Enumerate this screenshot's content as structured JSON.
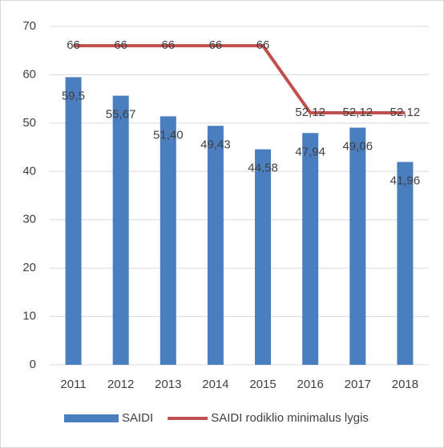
{
  "chart_data": {
    "type": "bar_line",
    "categories": [
      "2011",
      "2012",
      "2013",
      "2014",
      "2015",
      "2016",
      "2017",
      "2018"
    ],
    "series": [
      {
        "name": "SAIDI",
        "type": "bar",
        "color": "#4a7ebf",
        "values": [
          59.5,
          55.67,
          51.4,
          49.43,
          44.58,
          47.94,
          49.06,
          41.96
        ],
        "value_labels": [
          "59,5",
          "55,67",
          "51,40",
          "49,43",
          "44,58",
          "47,94",
          "49,06",
          "41,96"
        ]
      },
      {
        "name": "SAIDI rodiklio minimalus lygis",
        "type": "line",
        "color": "#c0504d",
        "values": [
          66,
          66,
          66,
          66,
          66,
          52.12,
          52.12,
          52.12
        ],
        "value_labels": [
          "66",
          "66",
          "66",
          "66",
          "66",
          "52,12",
          "52,12",
          "52,12"
        ]
      }
    ],
    "ylim": [
      0,
      70
    ],
    "yticks": [
      0,
      10,
      20,
      30,
      40,
      50,
      60,
      70
    ],
    "grid": true,
    "legend": "bottom"
  }
}
